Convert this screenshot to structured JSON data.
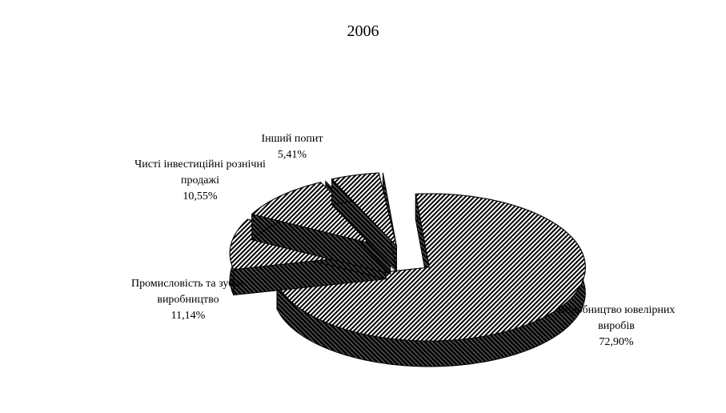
{
  "chart_data": {
    "type": "pie",
    "title": "2006",
    "three_d": true,
    "exploded": true,
    "fill": "diagonal hatch, black on white",
    "slices": [
      {
        "label": "Виробництво ювелірних виробів",
        "value": 72.9,
        "value_label": "72,90%"
      },
      {
        "label": "Промисловість та зубне виробництво",
        "value": 11.14,
        "value_label": "11,14%"
      },
      {
        "label": "Чисті інвестиційні рознічні продажі",
        "value": 10.55,
        "value_label": "10,55%"
      },
      {
        "label": "Інший попит",
        "value": 5.41,
        "value_label": "5,41%"
      }
    ]
  }
}
